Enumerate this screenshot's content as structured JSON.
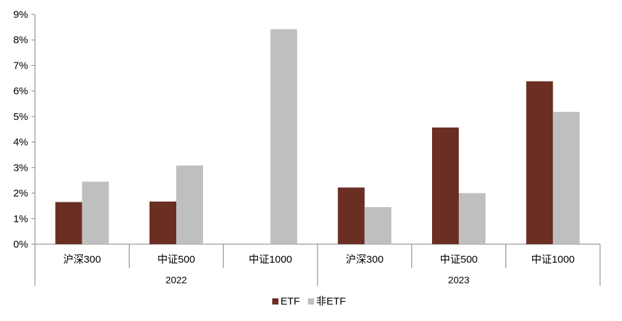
{
  "chart_data": {
    "type": "bar",
    "title": "",
    "xlabel": "",
    "ylabel": "",
    "ylim": [
      0,
      9
    ],
    "yticks": [
      "0%",
      "1%",
      "2%",
      "3%",
      "4%",
      "5%",
      "6%",
      "7%",
      "8%",
      "9%"
    ],
    "groups": [
      {
        "label": "2022",
        "categories": [
          "沪深300",
          "中证500",
          "中证1000"
        ]
      },
      {
        "label": "2023",
        "categories": [
          "沪深300",
          "中证500",
          "中证1000"
        ]
      }
    ],
    "series": [
      {
        "name": "ETF",
        "color": "#6b2e22",
        "values": [
          1.65,
          1.67,
          null,
          2.22,
          4.57,
          6.38
        ]
      },
      {
        "name": "非ETF",
        "color": "#bfbfc0",
        "values": [
          2.45,
          3.08,
          8.42,
          1.45,
          2.0,
          5.18
        ]
      }
    ],
    "grid": false,
    "legend_position": "bottom-center"
  }
}
